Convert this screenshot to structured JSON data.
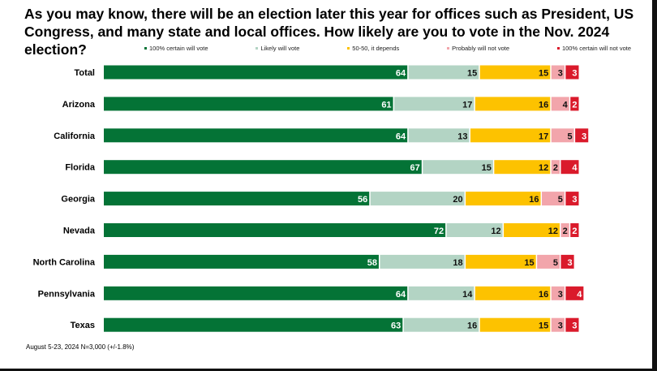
{
  "chart_data": {
    "type": "bar",
    "orientation": "horizontal",
    "stacked": true,
    "title": "As you may know, there will be an election later this year for offices such as President, US Congress, and many state and local offices. How likely are you to vote in the Nov. 2024 election?",
    "categories": [
      "Total",
      "Arizona",
      "California",
      "Florida",
      "Georgia",
      "Nevada",
      "North Carolina",
      "Pennsylvania",
      "Texas"
    ],
    "series": [
      {
        "name": "100% certain will vote",
        "color": "#047336",
        "label_color": "#ffffff",
        "values": [
          64,
          61,
          64,
          67,
          56,
          72,
          58,
          64,
          63
        ]
      },
      {
        "name": "Likely will vote",
        "color": "#b3d4c4",
        "label_color": "#111111",
        "values": [
          15,
          17,
          13,
          15,
          20,
          12,
          18,
          14,
          16
        ]
      },
      {
        "name": "50-50, it depends",
        "color": "#fdc200",
        "label_color": "#111111",
        "values": [
          15,
          16,
          17,
          12,
          16,
          12,
          15,
          16,
          15
        ]
      },
      {
        "name": "Probably will not vote",
        "color": "#f2a5ab",
        "label_color": "#111111",
        "values": [
          3,
          4,
          5,
          2,
          5,
          2,
          5,
          3,
          3
        ]
      },
      {
        "name": "100% certain will not vote",
        "color": "#da1a2b",
        "label_color": "#ffffff",
        "values": [
          3,
          2,
          3,
          4,
          3,
          2,
          3,
          4,
          3
        ]
      }
    ],
    "xlim": [
      0,
      100
    ],
    "legend": "top",
    "grid": false
  },
  "footer": "August 5-23, 2024   N=3,000 (+/-1.8%)"
}
